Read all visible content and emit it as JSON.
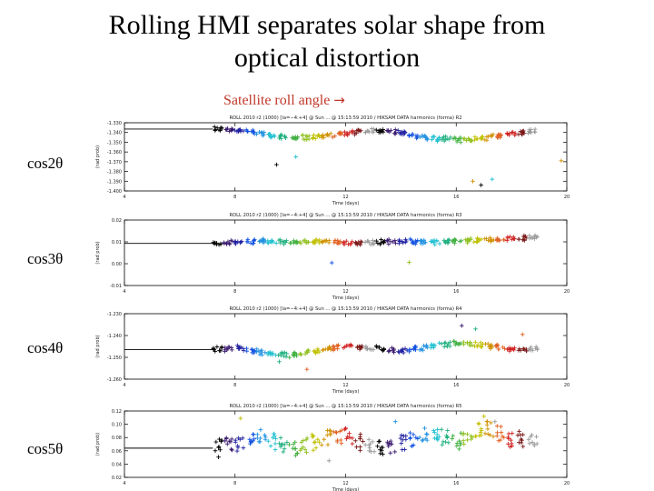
{
  "slide": {
    "title_line1": "Rolling HMI separates solar shape from",
    "title_line2": "optical distortion",
    "roll_label": "Satellite roll angle",
    "roll_arrow": "→"
  },
  "colors": {
    "roll_label": "#c0392b",
    "roll_cycle": [
      "#000000",
      "#3a1a6e",
      "#2020a0",
      "#1050e0",
      "#2090e0",
      "#20c0d0",
      "#20b080",
      "#40b040",
      "#90c020",
      "#c0c000",
      "#d09000",
      "#e06020",
      "#d02020",
      "#7a1818",
      "#9a9a9a"
    ]
  },
  "chart_data": [
    {
      "type": "scatter",
      "row_label": "cos2θ",
      "header": "ROLL 2010 r2 (1000) [la=−4:+4] @ Sun ... @ 15:13:59 2010 / HIKSAM DATA harmonics (forma) R2",
      "ylabel": "(rad prob)",
      "xlabel": "Time (days)",
      "y_ticks": [
        "-1.330",
        "-1.340",
        "-1.350",
        "-1.360",
        "-1.370",
        "-1.380",
        "-1.390",
        "-1.400"
      ],
      "ylim": [
        -1.4,
        -1.33
      ],
      "x_ticks": [
        "4",
        "8",
        "12",
        "16",
        "20"
      ],
      "xlim": [
        4,
        20
      ],
      "baseline": -1.3365,
      "trend": [
        [
          7.2,
          -1.3362
        ],
        [
          8,
          -1.3368
        ],
        [
          9,
          -1.3415
        ],
        [
          10,
          -1.3452
        ],
        [
          11,
          -1.3445
        ],
        [
          12,
          -1.3405
        ],
        [
          13,
          -1.3375
        ],
        [
          14,
          -1.3405
        ],
        [
          15,
          -1.3458
        ],
        [
          16,
          -1.3475
        ],
        [
          17,
          -1.3455
        ],
        [
          18,
          -1.3412
        ],
        [
          19,
          -1.3378
        ]
      ],
      "outliers": [
        [
          9.5,
          -1.373
        ],
        [
          10.2,
          -1.365
        ],
        [
          16.6,
          -1.39
        ],
        [
          16.9,
          -1.394
        ],
        [
          17.3,
          -1.388
        ],
        [
          19.8,
          -1.369
        ]
      ]
    },
    {
      "type": "scatter",
      "row_label": "cos3θ",
      "header": "ROLL 2010 r2 (1000) [la=−4:+4] @ Sun ... @ 15:13:59 2010 / HIKSAM DATA harmonics (forma) R3",
      "ylabel": "(rad prob)",
      "xlabel": "Time (days)",
      "y_ticks": [
        "0.02",
        "0.01",
        "0.00",
        "-0.01"
      ],
      "ylim": [
        -0.01,
        0.02
      ],
      "x_ticks": [
        "4",
        "8",
        "12",
        "16",
        "20"
      ],
      "xlim": [
        4,
        20
      ],
      "baseline": 0.0093,
      "trend": [
        [
          7.2,
          0.0093
        ],
        [
          8,
          0.0096
        ],
        [
          9,
          0.0103
        ],
        [
          10,
          0.0098
        ],
        [
          11,
          0.0101
        ],
        [
          12,
          0.0095
        ],
        [
          13,
          0.0099
        ],
        [
          14,
          0.0104
        ],
        [
          15,
          0.0098
        ],
        [
          16,
          0.0102
        ],
        [
          17,
          0.0109
        ],
        [
          18,
          0.0116
        ],
        [
          19,
          0.0122
        ]
      ],
      "outliers": [
        [
          11.5,
          0.0004
        ],
        [
          14.3,
          0.0006
        ]
      ]
    },
    {
      "type": "scatter",
      "row_label": "cos4θ",
      "header": "ROLL 2010 r2 (1000) [la=−4:+4] @ Sun ... @ 15:13:59 2010 / HIKSAM DATA harmonics (forma) R4",
      "ylabel": "(rad prob)",
      "xlabel": "Time (days)",
      "y_ticks": [
        "-1.230",
        "-1.240",
        "-1.250",
        "-1.260"
      ],
      "ylim": [
        -1.26,
        -1.23
      ],
      "x_ticks": [
        "4",
        "8",
        "12",
        "16",
        "20"
      ],
      "xlim": [
        4,
        20
      ],
      "baseline": -1.2465,
      "trend": [
        [
          7.2,
          -1.2465
        ],
        [
          8,
          -1.2455
        ],
        [
          9,
          -1.2478
        ],
        [
          10,
          -1.2492
        ],
        [
          11,
          -1.2468
        ],
        [
          12,
          -1.2448
        ],
        [
          13,
          -1.2458
        ],
        [
          14,
          -1.2472
        ],
        [
          15,
          -1.2452
        ],
        [
          16,
          -1.2433
        ],
        [
          17,
          -1.2443
        ],
        [
          18,
          -1.2468
        ],
        [
          19,
          -1.2458
        ]
      ],
      "outliers": [
        [
          9.6,
          -1.252
        ],
        [
          10.6,
          -1.2555
        ],
        [
          16.2,
          -1.2355
        ],
        [
          16.7,
          -1.237
        ],
        [
          18.4,
          -1.2395
        ]
      ]
    },
    {
      "type": "scatter",
      "row_label": "cos5θ",
      "header": "ROLL 2010 r2 (1000) [la=−4:+4] @ Sun ... @ 15:13:59 2010 / HIKSAM DATA harmonics (forma) R5",
      "ylabel": "(rad prob)",
      "xlabel": "Time (days)",
      "y_ticks": [
        "0.12",
        "0.10",
        "0.08",
        "0.06",
        "0.04",
        "0.02"
      ],
      "ylim": [
        0.02,
        0.12
      ],
      "x_ticks": [
        "4",
        "8",
        "12",
        "16",
        "20"
      ],
      "xlim": [
        4,
        20
      ],
      "baseline": 0.064,
      "trend": [
        [
          7.2,
          0.064
        ],
        [
          8,
          0.07
        ],
        [
          9,
          0.078
        ],
        [
          10,
          0.062
        ],
        [
          11,
          0.075
        ],
        [
          12,
          0.082
        ],
        [
          13,
          0.066
        ],
        [
          14,
          0.071
        ],
        [
          15,
          0.085
        ],
        [
          16,
          0.074
        ],
        [
          17,
          0.095
        ],
        [
          18,
          0.079
        ],
        [
          19,
          0.072
        ]
      ],
      "outliers": [
        [
          8.2,
          0.109
        ],
        [
          11.4,
          0.045
        ],
        [
          13.8,
          0.104
        ],
        [
          17.0,
          0.112
        ],
        [
          17.4,
          0.104
        ]
      ]
    }
  ]
}
